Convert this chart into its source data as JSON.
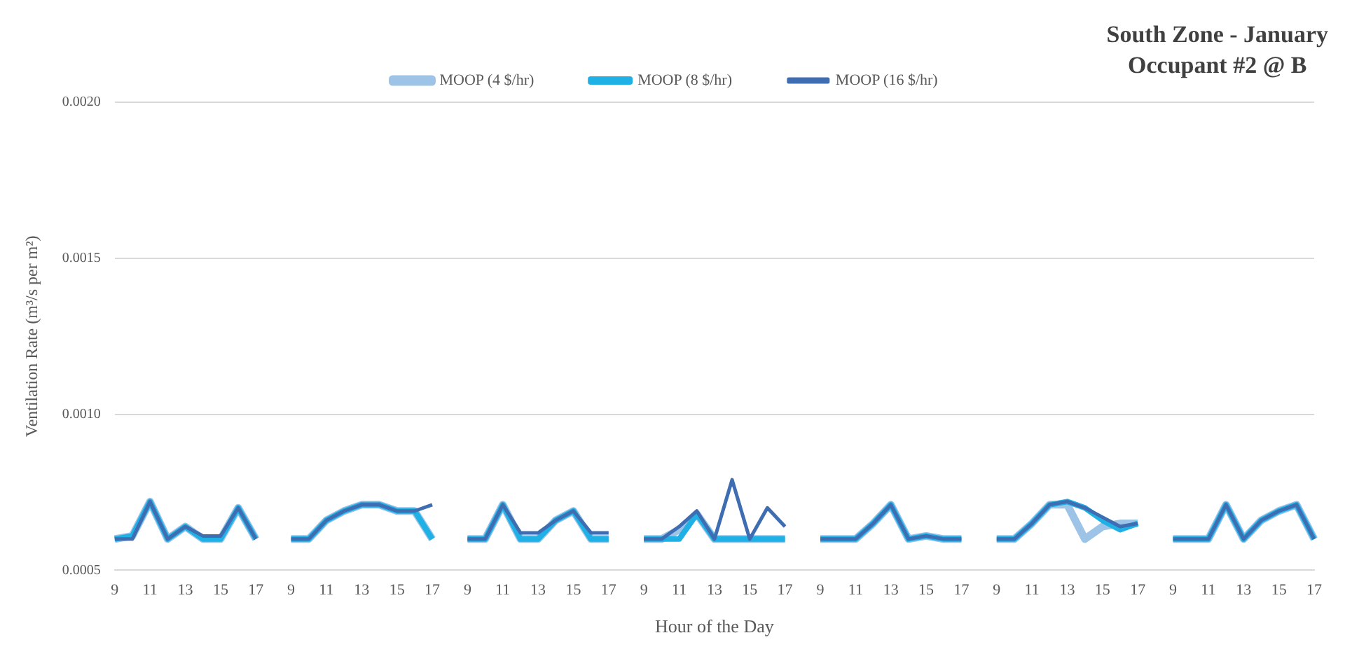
{
  "chart_data": {
    "type": "line",
    "title": "South Zone - January\nOccupant #2 @ B",
    "xlabel": "Hour of the Day",
    "ylabel": "Ventilation Rate (m³/s per m²)",
    "categories": [
      "9",
      null,
      "11",
      null,
      "13",
      null,
      "15",
      null,
      "17",
      null,
      "9",
      null,
      "11",
      null,
      "13",
      null,
      "15",
      null,
      "17",
      null,
      "9",
      null,
      "11",
      null,
      "13",
      null,
      "15",
      null,
      "17",
      null,
      "9",
      null,
      "11",
      null,
      "13",
      null,
      "15",
      null,
      "17",
      null,
      "9",
      null,
      "11",
      null,
      "13",
      null,
      "15",
      null,
      "17",
      null,
      "9",
      null,
      "11",
      null,
      "13",
      null,
      "15",
      null,
      "17",
      null,
      "9",
      null,
      "11",
      null,
      "13",
      null,
      "15",
      null,
      "17"
    ],
    "series": [
      {
        "name": "MOOP (4 $/hr)",
        "color": "#9dc3e6",
        "values": [
          0.0006,
          0.00061,
          0.00072,
          0.0006,
          0.00064,
          0.0006,
          0.0006,
          0.0007,
          0.0006,
          null,
          0.0006,
          0.0006,
          0.00066,
          0.00069,
          0.00071,
          0.00071,
          0.00069,
          0.00069,
          0.0006,
          null,
          0.0006,
          0.0006,
          0.00071,
          0.0006,
          0.0006,
          0.00066,
          0.00069,
          0.0006,
          0.0006,
          null,
          0.0006,
          0.0006,
          0.00063,
          0.00068,
          0.0006,
          0.0006,
          0.0006,
          0.0006,
          0.0006,
          null,
          0.0006,
          0.0006,
          0.0006,
          0.00065,
          0.00071,
          0.0006,
          0.00061,
          0.0006,
          0.0006,
          null,
          0.0006,
          0.0006,
          0.00065,
          0.00071,
          0.00071,
          0.0006,
          0.00064,
          0.00065,
          0.00065,
          null,
          0.0006,
          0.0006,
          0.0006,
          0.00071,
          0.0006,
          0.00066,
          0.00069,
          0.00071,
          0.0006
        ]
      },
      {
        "name": "MOOP (8 $/hr)",
        "color": "#1fb0e6",
        "values": [
          0.0006,
          0.00061,
          0.00072,
          0.0006,
          0.00064,
          0.0006,
          0.0006,
          0.0007,
          0.0006,
          null,
          0.0006,
          0.0006,
          0.00066,
          0.00069,
          0.00071,
          0.00071,
          0.00069,
          0.00069,
          0.0006,
          null,
          0.0006,
          0.0006,
          0.00071,
          0.0006,
          0.0006,
          0.00066,
          0.00069,
          0.0006,
          0.0006,
          null,
          0.0006,
          0.0006,
          0.0006,
          0.00068,
          0.0006,
          0.0006,
          0.0006,
          0.0006,
          0.0006,
          null,
          0.0006,
          0.0006,
          0.0006,
          0.00065,
          0.00071,
          0.0006,
          0.00061,
          0.0006,
          0.0006,
          null,
          0.0006,
          0.0006,
          0.00065,
          0.00071,
          0.00072,
          0.0007,
          0.00066,
          0.00063,
          0.00065,
          null,
          0.0006,
          0.0006,
          0.0006,
          0.00071,
          0.0006,
          0.00066,
          0.00069,
          0.00071,
          0.0006
        ]
      },
      {
        "name": "MOOP (16 $/hr)",
        "color": "#3f6db2",
        "values": [
          0.0006,
          0.0006,
          0.00072,
          0.0006,
          0.00064,
          0.00061,
          0.00061,
          0.0007,
          0.0006,
          null,
          0.0006,
          0.0006,
          0.00066,
          0.00069,
          0.00071,
          0.00071,
          0.00069,
          0.00069,
          0.00071,
          null,
          0.0006,
          0.0006,
          0.00071,
          0.00062,
          0.00062,
          0.00066,
          0.00069,
          0.00062,
          0.00062,
          null,
          0.0006,
          0.0006,
          0.00064,
          0.00069,
          0.0006,
          0.00079,
          0.0006,
          0.0007,
          0.00064,
          null,
          0.0006,
          0.0006,
          0.0006,
          0.00065,
          0.00071,
          0.0006,
          0.00061,
          0.0006,
          0.0006,
          null,
          0.0006,
          0.0006,
          0.00065,
          0.00071,
          0.00072,
          0.0007,
          0.00067,
          0.00064,
          0.00065,
          null,
          0.0006,
          0.0006,
          0.0006,
          0.00071,
          0.0006,
          0.00066,
          0.00069,
          0.00071,
          0.0006
        ]
      }
    ],
    "ylim": [
      0.0005,
      0.002
    ],
    "yticks": [
      0.0005,
      {
        "value": 0.001,
        "label": "0.0010"
      },
      0.0015,
      {
        "value": 0.002,
        "label": "0.0020"
      }
    ],
    "grid": "y",
    "legend": "top",
    "marker": "none",
    "line_style": "solid"
  }
}
